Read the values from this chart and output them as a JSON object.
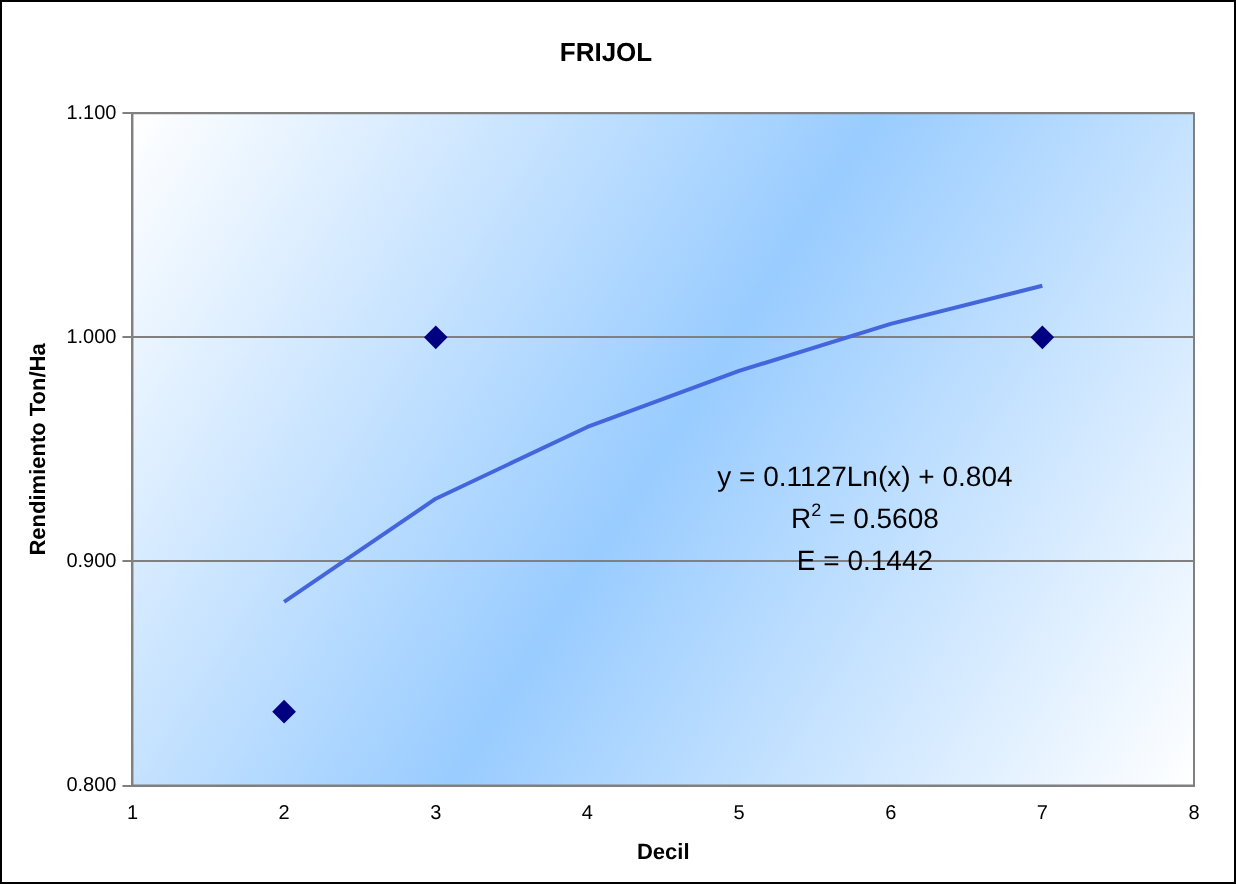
{
  "chart_data": {
    "type": "scatter",
    "title": "FRIJOL",
    "xlabel": "Decil",
    "ylabel": "Rendimiento Ton/Ha",
    "series": [
      {
        "color": "#000080",
        "marker": "diamond",
        "x": [
          2,
          3,
          7
        ],
        "values": [
          0.833,
          1.0,
          1.0
        ]
      },
      {
        "type": "line",
        "color": "#4466dd",
        "marker": "none",
        "x": [
          2,
          3,
          4,
          5,
          6,
          7
        ],
        "values": [
          0.882,
          0.928,
          0.96,
          0.985,
          1.006,
          1.023
        ]
      }
    ],
    "xlim": [
      1,
      8
    ],
    "xticks": [
      1,
      2,
      3,
      4,
      5,
      6,
      7,
      8
    ],
    "ylim": [
      0.8,
      1.1
    ],
    "yticks": [
      {
        "value": 0.8,
        "label": "0.800"
      },
      {
        "value": 0.9,
        "label": "0.900"
      },
      {
        "value": 1.0,
        "label": "1.000"
      },
      {
        "value": 1.1,
        "label": "1.100"
      }
    ],
    "grid": "y",
    "legend": false,
    "annotations": [
      "y = 0.1127Ln(x) + 0.804",
      "R$^{2}$ = 0.5608",
      "E = 0.1442"
    ]
  }
}
